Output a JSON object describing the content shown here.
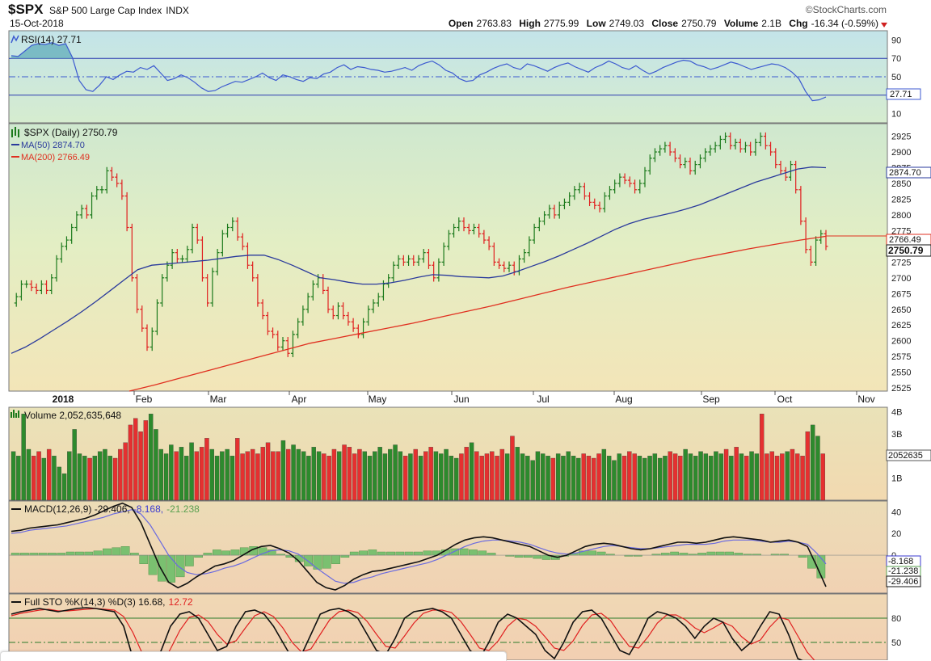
{
  "header": {
    "symbol": "$SPX",
    "name": "S&P 500 Large Cap Index",
    "exchange": "INDX",
    "source": "©StockCharts.com",
    "date": "15-Oct-2018",
    "open_label": "Open",
    "open": "2763.83",
    "high_label": "High",
    "high": "2775.99",
    "low_label": "Low",
    "low": "2749.03",
    "close_label": "Close",
    "close": "2750.79",
    "volume_label": "Volume",
    "volume": "2.1B",
    "chg_label": "Chg",
    "chg": "-16.34 (-0.59%)"
  },
  "legends": {
    "rsi": "RSI(14) 27.71",
    "price": "$SPX (Daily) 2750.79",
    "ma50": "MA(50) 2874.70",
    "ma200": "MA(200) 2766.49",
    "volume": "Volume 2,052,635,648",
    "macd_main": "MACD(12,26,9) -29.406,",
    "macd_sig": "-8.168,",
    "macd_hist": "-21.238",
    "sto_main": "Full STO %K(14,3) %D(3) 16.68,",
    "sto_d": "12.72"
  },
  "badges": {
    "rsi": "27.71",
    "ma50": "2874.70",
    "ma200": "2766.49",
    "close": "2750.79",
    "volume": "2052635",
    "macd_sig": "-8.168",
    "macd_hist": "-21.238",
    "macd_line": "-29.406"
  },
  "colors": {
    "up": "#1c7a1c",
    "down": "#e02020",
    "ma50": "#2a3a9c",
    "ma200": "#e03020",
    "rsi_line": "#3c5ad0",
    "macd": "#111111",
    "signal": "#6a6ae0",
    "hist": "#7ac070"
  },
  "chart_data": [
    {
      "type": "line",
      "title": "RSI(14) 27.71",
      "ylim": [
        0,
        100
      ],
      "yticks": [
        10,
        50,
        70,
        90
      ],
      "guides": [
        30,
        50,
        70
      ],
      "series": [
        {
          "name": "RSI(14)",
          "values": [
            73,
            72,
            78,
            84,
            86,
            85,
            87,
            84,
            86,
            71,
            46,
            36,
            34,
            41,
            50,
            47,
            52,
            56,
            55,
            60,
            58,
            62,
            54,
            46,
            48,
            52,
            49,
            44,
            38,
            34,
            35,
            39,
            42,
            45,
            44,
            47,
            50,
            54,
            49,
            46,
            52,
            50,
            47,
            45,
            49,
            48,
            53,
            55,
            60,
            63,
            58,
            61,
            60,
            58,
            57,
            55,
            56,
            58,
            60,
            57,
            62,
            65,
            67,
            63,
            57,
            54,
            48,
            45,
            46,
            52,
            55,
            59,
            62,
            64,
            60,
            58,
            64,
            62,
            59,
            56,
            60,
            63,
            65,
            61,
            58,
            55,
            60,
            63,
            67,
            64,
            60,
            58,
            62,
            57,
            53,
            56,
            60,
            63,
            66,
            68,
            67,
            63,
            61,
            58,
            60,
            63,
            66,
            64,
            61,
            58,
            60,
            62,
            64,
            63,
            60,
            55,
            48,
            34,
            24,
            25,
            28
          ]
        }
      ]
    },
    {
      "type": "line",
      "title": "$SPX (Daily) 2750.79",
      "ylim": [
        2520,
        2945
      ],
      "yticks": [
        2525,
        2550,
        2575,
        2600,
        2625,
        2650,
        2675,
        2700,
        2725,
        2750,
        2775,
        2800,
        2825,
        2850,
        2875,
        2900,
        2925
      ],
      "x_labels": [
        "2018",
        "Feb",
        "Mar",
        "Apr",
        "May",
        "Jun",
        "Jul",
        "Aug",
        "Sep",
        "Oct",
        "Nov"
      ],
      "series": [
        {
          "name": "$SPX (Daily)",
          "values": [
            2660,
            2670,
            2690,
            2690,
            2685,
            2680,
            2690,
            2680,
            2700,
            2730,
            2750,
            2760,
            2780,
            2800,
            2810,
            2800,
            2830,
            2840,
            2840,
            2870,
            2860,
            2850,
            2830,
            2780,
            2700,
            2650,
            2620,
            2590,
            2615,
            2660,
            2700,
            2720,
            2740,
            2730,
            2730,
            2745,
            2780,
            2760,
            2700,
            2660,
            2710,
            2740,
            2770,
            2780,
            2790,
            2765,
            2750,
            2720,
            2700,
            2660,
            2640,
            2615,
            2610,
            2590,
            2600,
            2580,
            2610,
            2630,
            2650,
            2670,
            2690,
            2700,
            2680,
            2650,
            2640,
            2655,
            2640,
            2630,
            2620,
            2610,
            2630,
            2650,
            2660,
            2670,
            2690,
            2700,
            2720,
            2730,
            2725,
            2730,
            2725,
            2730,
            2740,
            2720,
            2700,
            2725,
            2750,
            2770,
            2780,
            2790,
            2780,
            2775,
            2780,
            2770,
            2760,
            2750,
            2725,
            2720,
            2715,
            2720,
            2710,
            2730,
            2740,
            2760,
            2780,
            2790,
            2800,
            2810,
            2800,
            2815,
            2820,
            2830,
            2840,
            2845,
            2830,
            2820,
            2815,
            2810,
            2830,
            2840,
            2850,
            2860,
            2855,
            2850,
            2840,
            2850,
            2870,
            2890,
            2900,
            2905,
            2910,
            2900,
            2890,
            2880,
            2885,
            2870,
            2880,
            2890,
            2900,
            2905,
            2910,
            2920,
            2925,
            2910,
            2915,
            2905,
            2910,
            2900,
            2915,
            2925,
            2910,
            2900,
            2880,
            2870,
            2860,
            2880,
            2840,
            2790,
            2745,
            2725,
            2760,
            2770,
            2750
          ]
        },
        {
          "name": "MA(50)",
          "values": [
            2580,
            2590,
            2603,
            2617,
            2631,
            2646,
            2662,
            2679,
            2696,
            2713,
            2720,
            2722,
            2724,
            2726,
            2728,
            2731,
            2734,
            2736,
            2736,
            2729,
            2720,
            2710,
            2700,
            2697,
            2693,
            2690,
            2690,
            2692,
            2696,
            2701,
            2705,
            2704,
            2702,
            2701,
            2700,
            2703,
            2710,
            2718,
            2726,
            2735,
            2745,
            2755,
            2766,
            2777,
            2786,
            2793,
            2798,
            2803,
            2809,
            2816,
            2825,
            2834,
            2843,
            2852,
            2859,
            2866,
            2873,
            2876,
            2875
          ]
        },
        {
          "name": "MA(200)",
          "values": [
            2520,
            2530,
            2541,
            2552,
            2563,
            2574,
            2585,
            2596,
            2604,
            2612,
            2620,
            2628,
            2637,
            2646,
            2655,
            2665,
            2675,
            2685,
            2694,
            2703,
            2712,
            2721,
            2730,
            2738,
            2746,
            2753,
            2760,
            2766
          ]
        }
      ]
    },
    {
      "type": "bar",
      "title": "Volume 2,052,635,648",
      "ylim": [
        0,
        4.2
      ],
      "yticks_label": [
        "1B",
        "2B",
        "3B",
        "4B"
      ],
      "yticks": [
        1,
        2,
        3,
        4
      ],
      "series": [
        {
          "name": "Volume (B)",
          "values": [
            2.2,
            2.0,
            3.9,
            2.3,
            2.0,
            2.2,
            1.9,
            2.3,
            2.0,
            1.5,
            1.2,
            2.2,
            3.2,
            2.1,
            2.0,
            1.9,
            2.0,
            2.2,
            2.3,
            2.0,
            1.9,
            2.3,
            2.6,
            3.4,
            3.7,
            3.1,
            3.6,
            3.9,
            3.2,
            2.3,
            2.1,
            2.5,
            2.2,
            2.4,
            2.0,
            2.6,
            2.2,
            2.4,
            2.8,
            2.3,
            2.0,
            2.2,
            2.3,
            2.0,
            2.8,
            2.1,
            2.2,
            2.3,
            2.1,
            2.4,
            2.6,
            2.2,
            2.2,
            2.7,
            2.3,
            2.5,
            2.3,
            2.2,
            2.0,
            2.4,
            2.2,
            2.1,
            2.0,
            2.3,
            2.2,
            2.5,
            2.4,
            2.1,
            2.3,
            2.2,
            2.0,
            2.2,
            2.4,
            2.1,
            2.3,
            2.5,
            2.2,
            2.0,
            2.1,
            2.3,
            2.0,
            2.2,
            2.4,
            2.2,
            2.1,
            2.3,
            2.0,
            1.9,
            2.1,
            2.4,
            2.6,
            2.2,
            2.0,
            2.1,
            2.2,
            2.0,
            2.3,
            2.1,
            2.9,
            2.4,
            2.1,
            2.0,
            1.8,
            2.2,
            2.1,
            2.0,
            1.9,
            2.1,
            2.0,
            2.2,
            2.0,
            1.9,
            2.1,
            2.0,
            1.9,
            2.1,
            2.3,
            2.0,
            1.8,
            2.1,
            2.0,
            2.2,
            2.1,
            2.0,
            1.9,
            2.0,
            2.1,
            1.9,
            2.0,
            2.2,
            2.1,
            2.0,
            2.3,
            2.1,
            2.0,
            2.2,
            2.1,
            2.0,
            2.2,
            2.1,
            2.3,
            2.0,
            2.4,
            2.1,
            2.0,
            2.2,
            2.1,
            3.9,
            2.1,
            2.2,
            2.0,
            2.1,
            2.2,
            2.3,
            2.1,
            2.0,
            3.1,
            3.4,
            2.9,
            2.1
          ]
        }
      ]
    },
    {
      "type": "line",
      "title": "MACD(12,26,9) -29.406, -8.168, -21.238",
      "ylim": [
        -35,
        50
      ],
      "yticks": [
        0,
        20,
        40
      ],
      "series": [
        {
          "name": "MACD",
          "values": [
            22,
            23,
            25,
            26,
            27,
            28,
            30,
            32,
            34,
            37,
            41,
            45,
            48,
            44,
            30,
            10,
            -10,
            -25,
            -30,
            -26,
            -20,
            -15,
            -10,
            -8,
            -5,
            0,
            5,
            8,
            9,
            6,
            2,
            -5,
            -15,
            -25,
            -30,
            -32,
            -28,
            -22,
            -18,
            -15,
            -14,
            -12,
            -10,
            -8,
            -6,
            -3,
            0,
            5,
            10,
            14,
            16,
            17,
            16,
            14,
            12,
            10,
            8,
            4,
            0,
            -2,
            0,
            4,
            8,
            10,
            11,
            10,
            8,
            6,
            5,
            6,
            8,
            10,
            12,
            12,
            11,
            12,
            14,
            16,
            17,
            16,
            15,
            14,
            12,
            13,
            14,
            12,
            8,
            -10,
            -29
          ]
        },
        {
          "name": "Signal",
          "values": [
            20,
            21,
            23,
            24,
            25,
            26,
            27,
            29,
            31,
            33,
            35,
            38,
            40,
            42,
            38,
            28,
            14,
            0,
            -10,
            -16,
            -18,
            -17,
            -15,
            -12,
            -10,
            -7,
            -3,
            1,
            4,
            5,
            4,
            1,
            -5,
            -12,
            -18,
            -24,
            -26,
            -25,
            -22,
            -20,
            -17,
            -15,
            -13,
            -11,
            -9,
            -7,
            -4,
            0,
            4,
            8,
            11,
            13,
            14,
            14,
            13,
            12,
            10,
            7,
            4,
            2,
            1,
            2,
            4,
            6,
            8,
            9,
            8,
            7,
            6,
            6,
            7,
            8,
            9,
            10,
            10,
            10,
            11,
            13,
            14,
            14,
            14,
            13,
            12,
            12,
            13,
            12,
            10,
            2,
            -8
          ]
        },
        {
          "name": "Histogram",
          "values": [
            2,
            2,
            2,
            2,
            2,
            2,
            3,
            3,
            3,
            4,
            6,
            7,
            8,
            2,
            -8,
            -18,
            -24,
            -25,
            -20,
            -10,
            -2,
            2,
            5,
            4,
            5,
            7,
            8,
            7,
            5,
            1,
            -2,
            -6,
            -10,
            -13,
            -12,
            -8,
            -2,
            3,
            4,
            5,
            3,
            3,
            3,
            3,
            3,
            4,
            4,
            5,
            6,
            6,
            5,
            4,
            2,
            0,
            -1,
            -2,
            -2,
            -3,
            -4,
            -4,
            -1,
            2,
            4,
            4,
            3,
            1,
            0,
            -1,
            -1,
            0,
            1,
            2,
            3,
            2,
            1,
            2,
            3,
            3,
            3,
            2,
            1,
            1,
            0,
            1,
            1,
            0,
            -2,
            -12,
            -21
          ]
        }
      ]
    },
    {
      "type": "line",
      "title": "Full STO %K(14,3) %D(3) 16.68, 12.72",
      "ylim": [
        0,
        100
      ],
      "yticks": [
        50,
        80
      ],
      "guides": [
        20,
        50,
        80
      ],
      "series": [
        {
          "name": "%K",
          "values": [
            85,
            88,
            90,
            92,
            90,
            88,
            90,
            92,
            93,
            92,
            90,
            88,
            70,
            30,
            10,
            15,
            40,
            70,
            85,
            88,
            80,
            60,
            40,
            45,
            70,
            88,
            90,
            85,
            70,
            50,
            30,
            35,
            60,
            85,
            90,
            92,
            88,
            80,
            60,
            40,
            35,
            55,
            80,
            88,
            90,
            92,
            88,
            80,
            60,
            40,
            30,
            50,
            75,
            85,
            80,
            70,
            60,
            40,
            30,
            50,
            75,
            88,
            90,
            80,
            60,
            40,
            35,
            55,
            80,
            88,
            85,
            80,
            70,
            55,
            70,
            80,
            75,
            55,
            40,
            50,
            70,
            88,
            85,
            60,
            30,
            25,
            20,
            16
          ]
        },
        {
          "name": "%D",
          "values": [
            83,
            86,
            88,
            90,
            91,
            89,
            89,
            90,
            91,
            92,
            91,
            90,
            82,
            62,
            36,
            18,
            22,
            42,
            65,
            81,
            84,
            76,
            60,
            48,
            52,
            68,
            83,
            88,
            82,
            68,
            50,
            38,
            42,
            60,
            78,
            88,
            90,
            87,
            76,
            60,
            45,
            43,
            58,
            74,
            86,
            90,
            90,
            87,
            76,
            60,
            43,
            40,
            52,
            70,
            80,
            78,
            70,
            57,
            43,
            40,
            52,
            71,
            84,
            86,
            77,
            60,
            45,
            43,
            57,
            74,
            84,
            84,
            78,
            68,
            62,
            68,
            75,
            70,
            57,
            48,
            53,
            69,
            81,
            78,
            58,
            38,
            25,
            13
          ]
        }
      ]
    }
  ]
}
